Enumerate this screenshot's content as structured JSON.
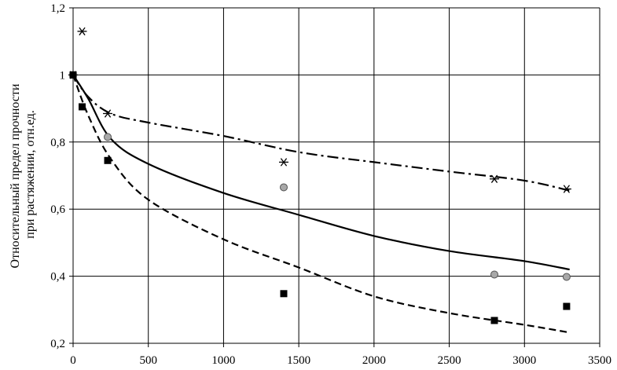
{
  "chart_data": {
    "type": "scatter",
    "title": "",
    "xlabel": "",
    "ylabel_lines": [
      "Относительный предел прочности",
      "при растяжении, отн.ед."
    ],
    "xlim": [
      0,
      3500
    ],
    "ylim": [
      0.2,
      1.2
    ],
    "x_ticks": [
      0,
      500,
      1000,
      1500,
      2000,
      2500,
      3000,
      3500
    ],
    "y_ticks": [
      0.2,
      0.4,
      0.6,
      0.8,
      1.0,
      1.2
    ],
    "x_tick_labels": [
      "0",
      "500",
      "1000",
      "1500",
      "2000",
      "2500",
      "3000",
      "3500"
    ],
    "y_tick_labels": [
      "0,2",
      "0,4",
      "0,6",
      "0,8",
      "1",
      "1,2"
    ],
    "grid": true,
    "legend": "none",
    "series": [
      {
        "marker": "asterisk",
        "color": "#000000",
        "points": [
          [
            0,
            1.0
          ],
          [
            60,
            1.13
          ],
          [
            230,
            0.885
          ],
          [
            1400,
            0.74
          ],
          [
            2800,
            0.69
          ],
          [
            3280,
            0.66
          ]
        ]
      },
      {
        "marker": "circle",
        "color": "#a8a8a8",
        "points": [
          [
            0,
            1.0
          ],
          [
            230,
            0.815
          ],
          [
            1400,
            0.665
          ],
          [
            2800,
            0.405
          ],
          [
            3280,
            0.398
          ]
        ]
      },
      {
        "marker": "square",
        "color": "#000000",
        "points": [
          [
            0,
            1.0
          ],
          [
            60,
            0.905
          ],
          [
            230,
            0.745
          ],
          [
            1400,
            0.348
          ],
          [
            2800,
            0.268
          ],
          [
            3280,
            0.31
          ]
        ]
      }
    ],
    "trendlines": [
      {
        "style": "dash-dot",
        "color": "#000000",
        "points": [
          [
            0,
            1.0
          ],
          [
            100,
            0.935
          ],
          [
            250,
            0.885
          ],
          [
            500,
            0.858
          ],
          [
            1000,
            0.818
          ],
          [
            1500,
            0.77
          ],
          [
            2000,
            0.74
          ],
          [
            2500,
            0.712
          ],
          [
            3000,
            0.685
          ],
          [
            3300,
            0.655
          ]
        ]
      },
      {
        "style": "solid",
        "color": "#000000",
        "points": [
          [
            0,
            1.0
          ],
          [
            100,
            0.93
          ],
          [
            250,
            0.81
          ],
          [
            500,
            0.735
          ],
          [
            1000,
            0.648
          ],
          [
            1500,
            0.583
          ],
          [
            2000,
            0.52
          ],
          [
            2500,
            0.475
          ],
          [
            3000,
            0.445
          ],
          [
            3300,
            0.42
          ]
        ]
      },
      {
        "style": "dashed",
        "color": "#000000",
        "points": [
          [
            0,
            1.0
          ],
          [
            100,
            0.88
          ],
          [
            250,
            0.75
          ],
          [
            500,
            0.628
          ],
          [
            1000,
            0.51
          ],
          [
            1500,
            0.426
          ],
          [
            2000,
            0.34
          ],
          [
            2500,
            0.29
          ],
          [
            3000,
            0.255
          ],
          [
            3300,
            0.232
          ]
        ]
      }
    ]
  }
}
